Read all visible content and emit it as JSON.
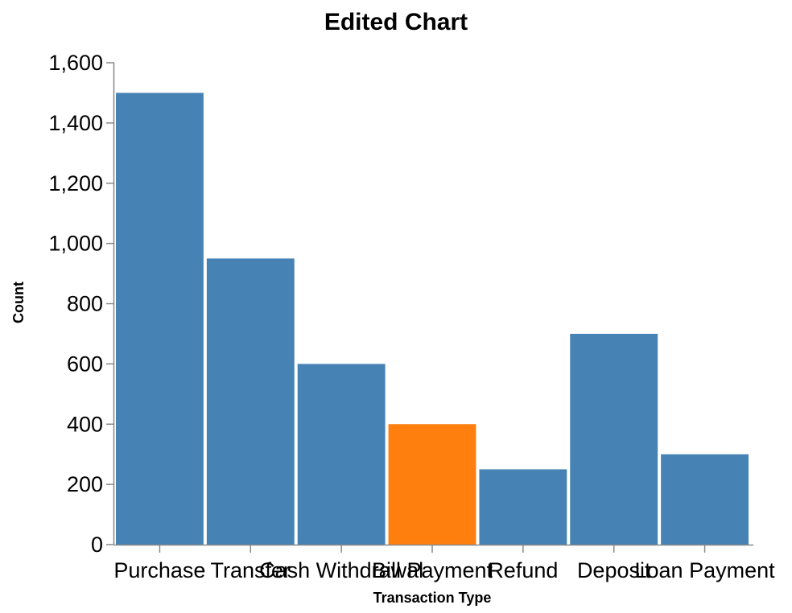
{
  "chart_data": {
    "type": "bar",
    "title": "Edited Chart",
    "xlabel": "Transaction Type",
    "ylabel": "Count",
    "categories": [
      "Purchase",
      "Transfer",
      "Cash Withdrawal",
      "Bill Payment",
      "Refund",
      "Deposit",
      "Loan Payment"
    ],
    "values": [
      1500,
      950,
      600,
      400,
      250,
      700,
      300
    ],
    "ylim": [
      0,
      1600
    ],
    "yticks": [
      0,
      200,
      400,
      600,
      800,
      1000,
      1200,
      1400,
      1600
    ],
    "yticks_formatted": [
      "0",
      "200",
      "400",
      "600",
      "800",
      "1,000",
      "1,200",
      "1,400",
      "1,600"
    ],
    "grid": false,
    "colors": {
      "default": "#4682b4",
      "highlight": "#ff7f0e"
    },
    "highlight_category": "Bill Payment"
  }
}
